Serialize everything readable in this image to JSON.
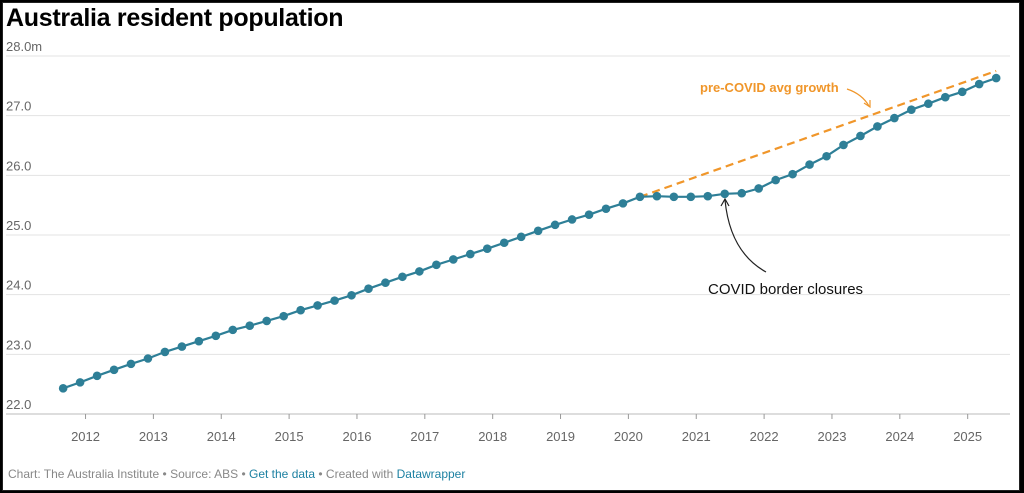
{
  "title": "Australia resident population",
  "footer": {
    "chart_by": "Chart: The Australia Institute",
    "source": "Source: ABS",
    "get_data": "Get the data",
    "created_with": "Created with",
    "tool": "Datawrapper",
    "sep": " • "
  },
  "colors": {
    "population_line": "#2e7f97",
    "trend_line": "#f0962a",
    "grid": "#e3e3e3",
    "axis_text": "#666666",
    "link": "#1d81a2"
  },
  "chart_data": {
    "type": "line",
    "title": "Australia resident population",
    "xlabel": "",
    "ylabel": "",
    "ylim": [
      22.0,
      28.0
    ],
    "xlim": [
      2011.55,
      2025.55
    ],
    "y_ticks": [
      22.0,
      23.0,
      24.0,
      25.0,
      26.0,
      27.0,
      28.0
    ],
    "y_tick_labels": [
      "22.0",
      "23.0",
      "24.0",
      "25.0",
      "26.0",
      "27.0",
      "28.0m"
    ],
    "x_ticks": [
      2012,
      2013,
      2014,
      2015,
      2016,
      2017,
      2018,
      2019,
      2020,
      2021,
      2022,
      2023,
      2024,
      2025
    ],
    "x_tick_labels": [
      "2012",
      "2013",
      "2014",
      "2015",
      "2016",
      "2017",
      "2018",
      "2019",
      "2020",
      "2021",
      "2022",
      "2023",
      "2024",
      "2025"
    ],
    "grid": true,
    "series": [
      {
        "name": "",
        "x": [
          2011.67,
          2011.92,
          2012.17,
          2012.42,
          2012.67,
          2012.92,
          2013.17,
          2013.42,
          2013.67,
          2013.92,
          2014.17,
          2014.42,
          2014.67,
          2014.92,
          2015.17,
          2015.42,
          2015.67,
          2015.92,
          2016.17,
          2016.42,
          2016.67,
          2016.92,
          2017.17,
          2017.42,
          2017.67,
          2017.92,
          2018.17,
          2018.42,
          2018.67,
          2018.92,
          2019.17,
          2019.42,
          2019.67,
          2019.92,
          2020.17,
          2020.42,
          2020.67,
          2020.92,
          2021.17,
          2021.42,
          2021.67,
          2021.92,
          2022.17,
          2022.42,
          2022.67,
          2022.92,
          2023.17,
          2023.42,
          2023.67,
          2023.92,
          2024.17,
          2024.42,
          2024.67,
          2024.92,
          2025.17,
          2025.42
        ],
        "values": [
          22.43,
          22.53,
          22.64,
          22.74,
          22.84,
          22.93,
          23.04,
          23.13,
          23.22,
          23.31,
          23.41,
          23.48,
          23.56,
          23.64,
          23.74,
          23.82,
          23.9,
          23.99,
          24.1,
          24.2,
          24.3,
          24.39,
          24.5,
          24.59,
          24.68,
          24.77,
          24.87,
          24.97,
          25.07,
          25.17,
          25.26,
          25.34,
          25.44,
          25.53,
          25.64,
          25.65,
          25.64,
          25.64,
          25.65,
          25.69,
          25.7,
          25.78,
          25.92,
          26.02,
          26.18,
          26.32,
          26.51,
          26.66,
          26.82,
          26.96,
          27.1,
          27.2,
          27.31,
          27.4,
          27.53,
          27.63
        ]
      },
      {
        "name": "pre-COVID avg growth",
        "x": [
          2020.17,
          2025.42
        ],
        "values": [
          25.64,
          27.75
        ]
      }
    ],
    "annotations": [
      {
        "text": "pre-COVID avg growth",
        "target_x": 2023.6,
        "target_y": 27.1
      },
      {
        "text": "COVID border closures",
        "target_x": 2021.4,
        "target_y": 25.62
      }
    ]
  }
}
